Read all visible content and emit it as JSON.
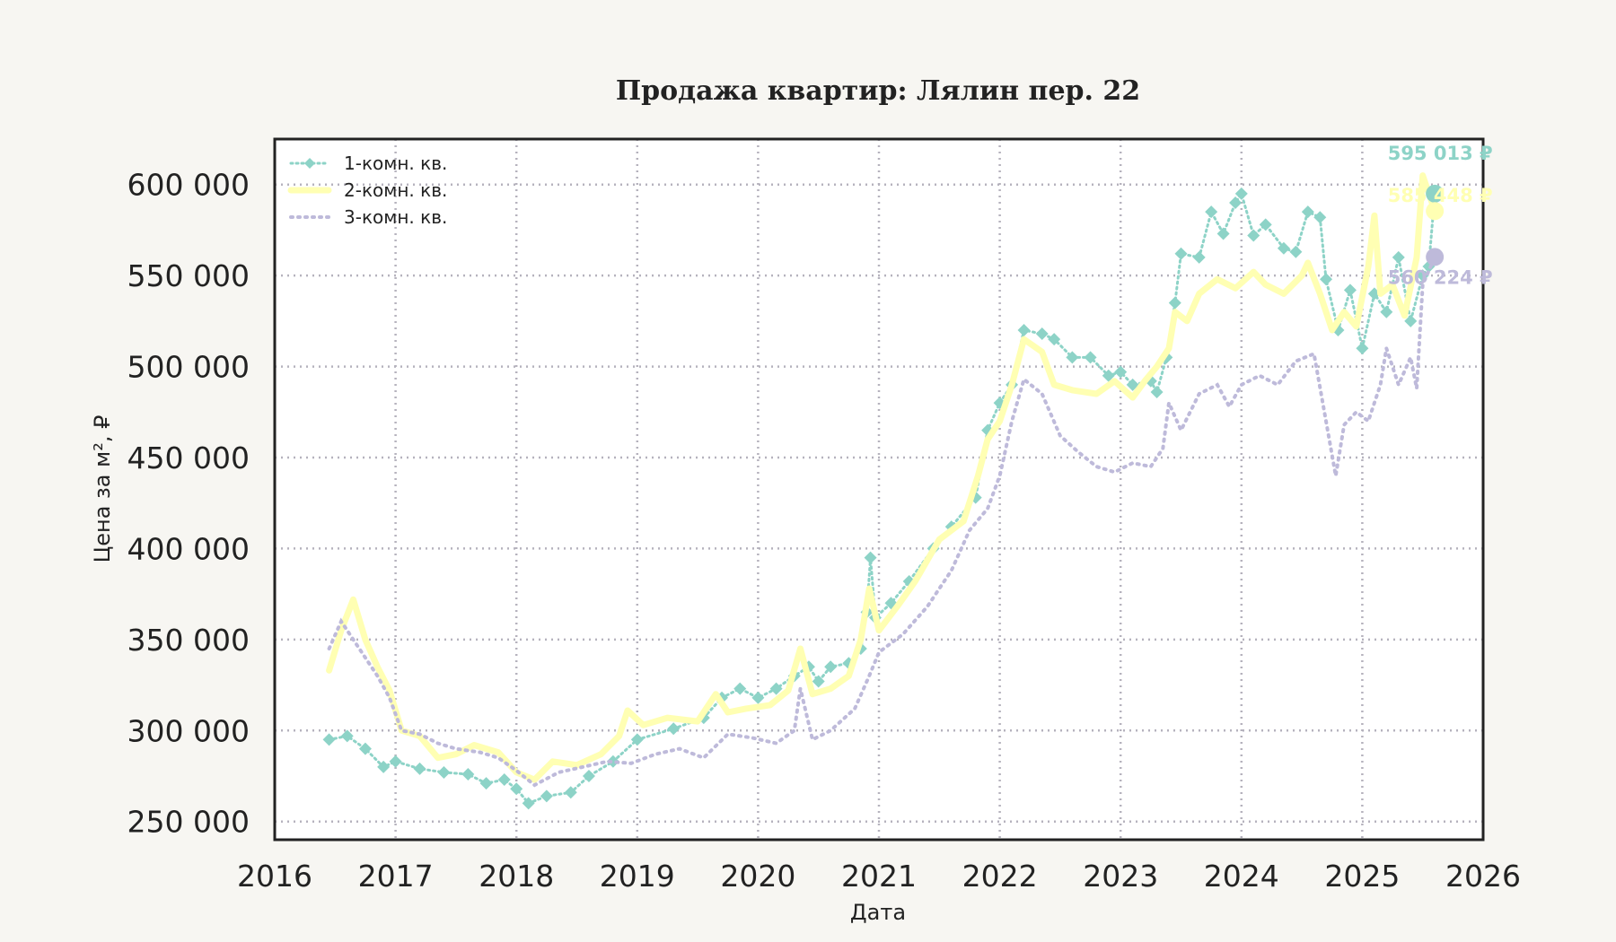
{
  "chart_data": {
    "type": "line",
    "title": "Продажа квартир: Лялин пер. 22",
    "xlabel": "Дата",
    "ylabel": "Цена за м², ₽",
    "xlim": [
      2016,
      2026
    ],
    "ylim": [
      240000,
      625000
    ],
    "x_ticks": [
      "2016",
      "2017",
      "2018",
      "2019",
      "2020",
      "2021",
      "2022",
      "2023",
      "2024",
      "2025",
      "2026"
    ],
    "y_ticks": [
      250000,
      300000,
      350000,
      400000,
      450000,
      500000,
      550000,
      600000
    ],
    "y_tick_labels": [
      "250 000",
      "300 000",
      "350 000",
      "400 000",
      "450 000",
      "500 000",
      "550 000",
      "600 000"
    ],
    "grid": true,
    "legend_position": "top-left",
    "series": [
      {
        "name": "1-комн. кв.",
        "color": "#8dd3c7",
        "style": "dotted-diamond",
        "end_label": "595 013 ₽",
        "points": [
          [
            2016.45,
            295000
          ],
          [
            2016.6,
            297000
          ],
          [
            2016.75,
            290000
          ],
          [
            2016.9,
            280000
          ],
          [
            2017.0,
            283000
          ],
          [
            2017.2,
            279000
          ],
          [
            2017.4,
            277000
          ],
          [
            2017.6,
            276000
          ],
          [
            2017.75,
            271000
          ],
          [
            2017.9,
            273000
          ],
          [
            2018.0,
            268000
          ],
          [
            2018.1,
            260000
          ],
          [
            2018.25,
            264000
          ],
          [
            2018.45,
            266000
          ],
          [
            2018.6,
            275000
          ],
          [
            2018.8,
            283000
          ],
          [
            2019.0,
            295000
          ],
          [
            2019.3,
            301000
          ],
          [
            2019.55,
            307000
          ],
          [
            2019.7,
            318000
          ],
          [
            2019.85,
            323000
          ],
          [
            2020.0,
            318000
          ],
          [
            2020.15,
            323000
          ],
          [
            2020.3,
            330000
          ],
          [
            2020.42,
            335000
          ],
          [
            2020.5,
            327000
          ],
          [
            2020.6,
            335000
          ],
          [
            2020.75,
            337000
          ],
          [
            2020.85,
            345000
          ],
          [
            2020.9,
            365000
          ],
          [
            2020.93,
            395000
          ],
          [
            2020.97,
            362000
          ],
          [
            2021.1,
            370000
          ],
          [
            2021.25,
            382000
          ],
          [
            2021.45,
            400000
          ],
          [
            2021.6,
            412000
          ],
          [
            2021.8,
            428000
          ],
          [
            2021.9,
            465000
          ],
          [
            2022.0,
            480000
          ],
          [
            2022.1,
            490000
          ],
          [
            2022.2,
            520000
          ],
          [
            2022.35,
            518000
          ],
          [
            2022.45,
            515000
          ],
          [
            2022.6,
            505000
          ],
          [
            2022.75,
            505000
          ],
          [
            2022.9,
            495000
          ],
          [
            2023.0,
            497000
          ],
          [
            2023.1,
            490000
          ],
          [
            2023.25,
            492000
          ],
          [
            2023.3,
            486000
          ],
          [
            2023.38,
            505000
          ],
          [
            2023.45,
            535000
          ],
          [
            2023.5,
            562000
          ],
          [
            2023.65,
            560000
          ],
          [
            2023.75,
            585000
          ],
          [
            2023.85,
            573000
          ],
          [
            2023.95,
            590000
          ],
          [
            2024.0,
            595000
          ],
          [
            2024.1,
            572000
          ],
          [
            2024.2,
            578000
          ],
          [
            2024.35,
            565000
          ],
          [
            2024.45,
            563000
          ],
          [
            2024.55,
            585000
          ],
          [
            2024.65,
            582000
          ],
          [
            2024.7,
            548000
          ],
          [
            2024.8,
            520000
          ],
          [
            2024.9,
            542000
          ],
          [
            2025.0,
            510000
          ],
          [
            2025.1,
            540000
          ],
          [
            2025.2,
            530000
          ],
          [
            2025.3,
            560000
          ],
          [
            2025.4,
            525000
          ],
          [
            2025.5,
            550000
          ],
          [
            2025.55,
            555000
          ],
          [
            2025.6,
            595013
          ]
        ]
      },
      {
        "name": "2-комн. кв.",
        "color": "#ffffb3",
        "style": "solid",
        "end_label": "585 448 ₽",
        "points": [
          [
            2016.45,
            333000
          ],
          [
            2016.55,
            355000
          ],
          [
            2016.65,
            372000
          ],
          [
            2016.75,
            350000
          ],
          [
            2016.85,
            335000
          ],
          [
            2016.95,
            322000
          ],
          [
            2017.05,
            300000
          ],
          [
            2017.2,
            297000
          ],
          [
            2017.35,
            285000
          ],
          [
            2017.5,
            287000
          ],
          [
            2017.65,
            292000
          ],
          [
            2017.85,
            288000
          ],
          [
            2018.0,
            277000
          ],
          [
            2018.15,
            273000
          ],
          [
            2018.3,
            283000
          ],
          [
            2018.5,
            281000
          ],
          [
            2018.7,
            287000
          ],
          [
            2018.85,
            297000
          ],
          [
            2018.92,
            311000
          ],
          [
            2019.05,
            303000
          ],
          [
            2019.25,
            307000
          ],
          [
            2019.5,
            305000
          ],
          [
            2019.65,
            320000
          ],
          [
            2019.75,
            310000
          ],
          [
            2019.9,
            312000
          ],
          [
            2020.1,
            314000
          ],
          [
            2020.25,
            322000
          ],
          [
            2020.35,
            345000
          ],
          [
            2020.45,
            320000
          ],
          [
            2020.6,
            323000
          ],
          [
            2020.75,
            330000
          ],
          [
            2020.85,
            350000
          ],
          [
            2020.92,
            378000
          ],
          [
            2021.0,
            355000
          ],
          [
            2021.15,
            368000
          ],
          [
            2021.3,
            382000
          ],
          [
            2021.5,
            405000
          ],
          [
            2021.7,
            415000
          ],
          [
            2021.82,
            440000
          ],
          [
            2021.9,
            460000
          ],
          [
            2022.0,
            470000
          ],
          [
            2022.1,
            490000
          ],
          [
            2022.2,
            515000
          ],
          [
            2022.35,
            508000
          ],
          [
            2022.45,
            490000
          ],
          [
            2022.6,
            487000
          ],
          [
            2022.8,
            485000
          ],
          [
            2022.95,
            492000
          ],
          [
            2023.1,
            483000
          ],
          [
            2023.2,
            492000
          ],
          [
            2023.3,
            500000
          ],
          [
            2023.4,
            510000
          ],
          [
            2023.45,
            530000
          ],
          [
            2023.55,
            525000
          ],
          [
            2023.65,
            540000
          ],
          [
            2023.8,
            548000
          ],
          [
            2023.95,
            543000
          ],
          [
            2024.1,
            552000
          ],
          [
            2024.2,
            545000
          ],
          [
            2024.35,
            540000
          ],
          [
            2024.5,
            550000
          ],
          [
            2024.55,
            557000
          ],
          [
            2024.65,
            540000
          ],
          [
            2024.75,
            520000
          ],
          [
            2024.85,
            530000
          ],
          [
            2024.95,
            522000
          ],
          [
            2025.05,
            555000
          ],
          [
            2025.1,
            583000
          ],
          [
            2025.15,
            540000
          ],
          [
            2025.25,
            545000
          ],
          [
            2025.35,
            528000
          ],
          [
            2025.45,
            560000
          ],
          [
            2025.5,
            605000
          ],
          [
            2025.6,
            585448
          ]
        ]
      },
      {
        "name": "3-комн. кв.",
        "color": "#bebada",
        "style": "dotted",
        "end_label": "560 224 ₽",
        "points": [
          [
            2016.45,
            345000
          ],
          [
            2016.55,
            360000
          ],
          [
            2016.65,
            350000
          ],
          [
            2016.75,
            340000
          ],
          [
            2016.85,
            330000
          ],
          [
            2016.95,
            318000
          ],
          [
            2017.05,
            300000
          ],
          [
            2017.2,
            298000
          ],
          [
            2017.35,
            293000
          ],
          [
            2017.5,
            290000
          ],
          [
            2017.7,
            288000
          ],
          [
            2017.85,
            285000
          ],
          [
            2018.0,
            278000
          ],
          [
            2018.15,
            270000
          ],
          [
            2018.35,
            277000
          ],
          [
            2018.55,
            280000
          ],
          [
            2018.75,
            283000
          ],
          [
            2018.95,
            282000
          ],
          [
            2019.15,
            287000
          ],
          [
            2019.35,
            290000
          ],
          [
            2019.55,
            285000
          ],
          [
            2019.75,
            298000
          ],
          [
            2019.95,
            296000
          ],
          [
            2020.15,
            293000
          ],
          [
            2020.3,
            300000
          ],
          [
            2020.35,
            323000
          ],
          [
            2020.45,
            295000
          ],
          [
            2020.6,
            300000
          ],
          [
            2020.8,
            312000
          ],
          [
            2020.92,
            330000
          ],
          [
            2021.0,
            343000
          ],
          [
            2021.2,
            353000
          ],
          [
            2021.4,
            368000
          ],
          [
            2021.6,
            388000
          ],
          [
            2021.75,
            410000
          ],
          [
            2021.9,
            422000
          ],
          [
            2022.0,
            440000
          ],
          [
            2022.1,
            470000
          ],
          [
            2022.2,
            493000
          ],
          [
            2022.35,
            485000
          ],
          [
            2022.5,
            462000
          ],
          [
            2022.65,
            453000
          ],
          [
            2022.8,
            445000
          ],
          [
            2022.95,
            442000
          ],
          [
            2023.1,
            447000
          ],
          [
            2023.25,
            445000
          ],
          [
            2023.35,
            455000
          ],
          [
            2023.4,
            480000
          ],
          [
            2023.5,
            465000
          ],
          [
            2023.65,
            485000
          ],
          [
            2023.8,
            490000
          ],
          [
            2023.9,
            478000
          ],
          [
            2024.0,
            490000
          ],
          [
            2024.15,
            495000
          ],
          [
            2024.3,
            490000
          ],
          [
            2024.45,
            503000
          ],
          [
            2024.6,
            507000
          ],
          [
            2024.7,
            470000
          ],
          [
            2024.78,
            440000
          ],
          [
            2024.85,
            468000
          ],
          [
            2024.95,
            475000
          ],
          [
            2025.05,
            470000
          ],
          [
            2025.15,
            490000
          ],
          [
            2025.2,
            510000
          ],
          [
            2025.3,
            490000
          ],
          [
            2025.4,
            505000
          ],
          [
            2025.45,
            488000
          ],
          [
            2025.5,
            545000
          ],
          [
            2025.6,
            560224
          ]
        ]
      }
    ]
  }
}
